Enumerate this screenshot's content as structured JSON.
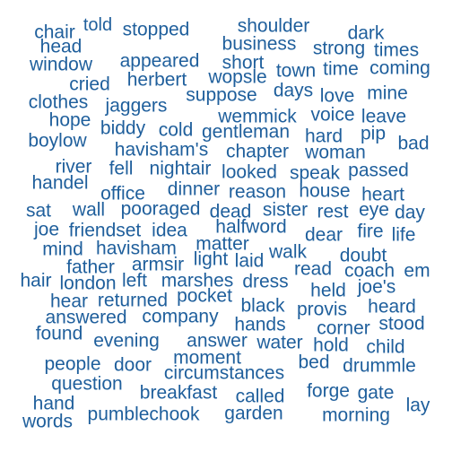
{
  "word_color": "#1f5f9c",
  "words": [
    "chair",
    "told",
    "stopped",
    "shoulder",
    "dark",
    "head",
    "business",
    "strong",
    "times",
    "window",
    "appeared",
    "short",
    "town",
    "time",
    "coming",
    "cried",
    "herbert",
    "wopsle",
    "clothes",
    "suppose",
    "days",
    "love",
    "mine",
    "jaggers",
    "hope",
    "wemmick",
    "voice",
    "leave",
    "biddy",
    "cold",
    "gentleman",
    "hard",
    "pip",
    "boylow",
    "havisham's",
    "chapter",
    "woman",
    "bad",
    "river",
    "fell",
    "nightair",
    "looked",
    "speak",
    "passed",
    "handel",
    "office",
    "dinner",
    "reason",
    "house",
    "heart",
    "sat",
    "wall",
    "pooraged",
    "dead",
    "sister",
    "rest",
    "eye",
    "day",
    "joe",
    "friendset",
    "idea",
    "halfword",
    "dear",
    "fire",
    "life",
    "mind",
    "havisham",
    "matter",
    "walk",
    "doubt",
    "father",
    "armsir",
    "light",
    "laid",
    "read",
    "coach",
    "em",
    "hair",
    "london",
    "left",
    "marshes",
    "dress",
    "joe's",
    "held",
    "hear",
    "returned",
    "pocket",
    "black",
    "provis",
    "heard",
    "answered",
    "company",
    "hands",
    "corner",
    "stood",
    "found",
    "evening",
    "answer",
    "water",
    "hold",
    "child",
    "moment",
    "people",
    "door",
    "circumstances",
    "bed",
    "drummle",
    "question",
    "breakfast",
    "called",
    "forge",
    "gate",
    "hand",
    "lay",
    "pumblechook",
    "garden",
    "morning",
    "words"
  ]
}
